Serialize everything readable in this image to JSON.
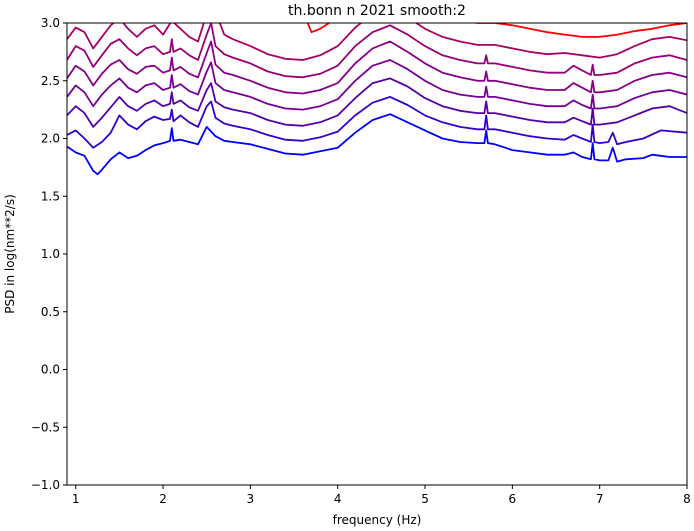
{
  "chart_data": {
    "type": "line",
    "title": "th.bonn n 2021 smooth:2",
    "xlabel": "frequency (Hz)",
    "ylabel": "PSD in log(nm**2/s)",
    "xlim": [
      0.9,
      8.0
    ],
    "ylim": [
      -1.0,
      3.0
    ],
    "grid": false,
    "legend": "none",
    "x_ticks": [
      1,
      2,
      3,
      4,
      5,
      6,
      7,
      8
    ],
    "y_ticks": [
      -1.0,
      -0.5,
      0.0,
      0.5,
      1.0,
      1.5,
      2.0,
      2.5,
      3.0
    ],
    "x_tick_labels": [
      "1",
      "2",
      "3",
      "4",
      "5",
      "6",
      "7",
      "8"
    ],
    "y_tick_labels": [
      "−1.0",
      "−0.5",
      "0.0",
      "0.5",
      "1.0",
      "1.5",
      "2.0",
      "2.5",
      "3.0"
    ],
    "series": [
      {
        "color": "#0000ff",
        "x": [
          0.9,
          1.0,
          1.1,
          1.2,
          1.25,
          1.3,
          1.4,
          1.5,
          1.6,
          1.7,
          1.8,
          1.9,
          2.0,
          2.08,
          2.1,
          2.12,
          2.2,
          2.3,
          2.4,
          2.5,
          2.6,
          2.7,
          2.8,
          3.0,
          3.2,
          3.4,
          3.6,
          3.8,
          4.0,
          4.2,
          4.4,
          4.6,
          4.8,
          5.0,
          5.2,
          5.4,
          5.6,
          5.68,
          5.7,
          5.72,
          5.8,
          6.0,
          6.2,
          6.4,
          6.6,
          6.7,
          6.8,
          6.9,
          6.92,
          6.94,
          7.0,
          7.1,
          7.15,
          7.2,
          7.3,
          7.5,
          7.6,
          7.7,
          7.8,
          8.0
        ],
        "y": [
          1.93,
          1.88,
          1.85,
          1.72,
          1.69,
          1.73,
          1.82,
          1.88,
          1.83,
          1.85,
          1.9,
          1.94,
          1.96,
          1.98,
          2.09,
          1.98,
          1.99,
          1.97,
          1.95,
          2.1,
          2.02,
          1.98,
          1.97,
          1.95,
          1.91,
          1.87,
          1.86,
          1.89,
          1.92,
          2.05,
          2.16,
          2.21,
          2.14,
          2.07,
          2.0,
          1.97,
          1.96,
          1.96,
          2.07,
          1.96,
          1.95,
          1.9,
          1.88,
          1.86,
          1.86,
          1.88,
          1.84,
          1.82,
          1.96,
          1.82,
          1.81,
          1.81,
          1.92,
          1.8,
          1.82,
          1.83,
          1.86,
          1.85,
          1.84,
          1.84
        ]
      },
      {
        "color": "#3300cc",
        "x": [
          0.9,
          1.0,
          1.1,
          1.2,
          1.3,
          1.4,
          1.5,
          1.6,
          1.7,
          1.8,
          1.9,
          2.0,
          2.08,
          2.1,
          2.12,
          2.2,
          2.3,
          2.4,
          2.5,
          2.55,
          2.6,
          2.7,
          2.8,
          3.0,
          3.2,
          3.4,
          3.6,
          3.8,
          4.0,
          4.2,
          4.4,
          4.6,
          4.8,
          5.0,
          5.2,
          5.4,
          5.6,
          5.68,
          5.7,
          5.72,
          5.8,
          6.0,
          6.2,
          6.4,
          6.6,
          6.7,
          6.8,
          6.9,
          6.92,
          6.94,
          7.0,
          7.1,
          7.15,
          7.2,
          7.3,
          7.5,
          7.7,
          8.0
        ],
        "y": [
          2.03,
          2.07,
          2.0,
          1.92,
          1.97,
          2.05,
          2.2,
          2.12,
          2.08,
          2.15,
          2.19,
          2.16,
          2.17,
          2.25,
          2.15,
          2.2,
          2.14,
          2.1,
          2.28,
          2.32,
          2.18,
          2.13,
          2.11,
          2.08,
          2.03,
          1.99,
          1.98,
          2.01,
          2.06,
          2.2,
          2.31,
          2.36,
          2.29,
          2.2,
          2.14,
          2.1,
          2.08,
          2.08,
          2.2,
          2.08,
          2.08,
          2.05,
          2.02,
          2.0,
          1.99,
          2.03,
          2.0,
          1.97,
          2.12,
          1.97,
          1.96,
          1.97,
          2.05,
          1.95,
          1.97,
          2.0,
          2.07,
          2.05
        ]
      },
      {
        "color": "#5500aa",
        "x": [
          0.9,
          1.0,
          1.1,
          1.2,
          1.3,
          1.4,
          1.5,
          1.6,
          1.7,
          1.8,
          1.9,
          2.0,
          2.08,
          2.1,
          2.12,
          2.2,
          2.3,
          2.4,
          2.5,
          2.55,
          2.6,
          2.7,
          2.8,
          3.0,
          3.2,
          3.4,
          3.6,
          3.8,
          4.0,
          4.2,
          4.4,
          4.6,
          4.8,
          5.0,
          5.2,
          5.4,
          5.6,
          5.68,
          5.7,
          5.72,
          5.8,
          6.0,
          6.2,
          6.4,
          6.6,
          6.7,
          6.8,
          6.9,
          6.92,
          6.94,
          7.0,
          7.2,
          7.4,
          7.6,
          7.8,
          8.0
        ],
        "y": [
          2.2,
          2.28,
          2.22,
          2.1,
          2.18,
          2.27,
          2.36,
          2.28,
          2.24,
          2.3,
          2.33,
          2.28,
          2.3,
          2.4,
          2.3,
          2.33,
          2.27,
          2.24,
          2.42,
          2.48,
          2.32,
          2.27,
          2.25,
          2.22,
          2.16,
          2.12,
          2.11,
          2.14,
          2.2,
          2.35,
          2.48,
          2.52,
          2.45,
          2.35,
          2.28,
          2.24,
          2.22,
          2.22,
          2.32,
          2.22,
          2.22,
          2.19,
          2.16,
          2.14,
          2.14,
          2.18,
          2.15,
          2.12,
          2.26,
          2.12,
          2.12,
          2.14,
          2.2,
          2.26,
          2.28,
          2.22
        ]
      },
      {
        "color": "#770099",
        "x": [
          0.9,
          1.0,
          1.1,
          1.2,
          1.3,
          1.4,
          1.5,
          1.6,
          1.7,
          1.8,
          1.9,
          2.0,
          2.08,
          2.1,
          2.12,
          2.2,
          2.3,
          2.4,
          2.5,
          2.55,
          2.6,
          2.7,
          2.8,
          3.0,
          3.2,
          3.4,
          3.6,
          3.8,
          4.0,
          4.2,
          4.4,
          4.6,
          4.8,
          5.0,
          5.2,
          5.4,
          5.6,
          5.68,
          5.7,
          5.72,
          5.8,
          6.0,
          6.2,
          6.4,
          6.6,
          6.7,
          6.8,
          6.9,
          6.92,
          6.94,
          7.0,
          7.2,
          7.4,
          7.6,
          7.8,
          8.0
        ],
        "y": [
          2.36,
          2.46,
          2.4,
          2.28,
          2.38,
          2.46,
          2.52,
          2.44,
          2.4,
          2.46,
          2.48,
          2.42,
          2.44,
          2.55,
          2.44,
          2.47,
          2.41,
          2.38,
          2.58,
          2.66,
          2.48,
          2.42,
          2.4,
          2.36,
          2.3,
          2.26,
          2.25,
          2.28,
          2.34,
          2.5,
          2.63,
          2.68,
          2.6,
          2.5,
          2.42,
          2.38,
          2.36,
          2.36,
          2.45,
          2.36,
          2.36,
          2.33,
          2.3,
          2.28,
          2.28,
          2.33,
          2.29,
          2.26,
          2.38,
          2.26,
          2.26,
          2.28,
          2.35,
          2.4,
          2.42,
          2.38
        ]
      },
      {
        "color": "#880088",
        "x": [
          0.9,
          1.0,
          1.1,
          1.2,
          1.3,
          1.4,
          1.5,
          1.6,
          1.7,
          1.8,
          1.9,
          2.0,
          2.08,
          2.1,
          2.12,
          2.2,
          2.3,
          2.4,
          2.5,
          2.55,
          2.6,
          2.7,
          2.8,
          3.0,
          3.2,
          3.4,
          3.6,
          3.8,
          4.0,
          4.2,
          4.4,
          4.6,
          4.8,
          5.0,
          5.2,
          5.4,
          5.6,
          5.68,
          5.7,
          5.72,
          5.8,
          6.0,
          6.2,
          6.4,
          6.6,
          6.7,
          6.8,
          6.9,
          6.92,
          6.94,
          7.0,
          7.2,
          7.4,
          7.6,
          7.8,
          8.0
        ],
        "y": [
          2.52,
          2.63,
          2.58,
          2.46,
          2.56,
          2.64,
          2.68,
          2.6,
          2.56,
          2.62,
          2.63,
          2.57,
          2.59,
          2.7,
          2.59,
          2.62,
          2.56,
          2.53,
          2.74,
          2.84,
          2.64,
          2.57,
          2.55,
          2.5,
          2.44,
          2.4,
          2.39,
          2.42,
          2.48,
          2.65,
          2.78,
          2.84,
          2.75,
          2.65,
          2.57,
          2.53,
          2.5,
          2.5,
          2.58,
          2.5,
          2.5,
          2.47,
          2.44,
          2.42,
          2.42,
          2.48,
          2.44,
          2.4,
          2.5,
          2.4,
          2.4,
          2.42,
          2.5,
          2.55,
          2.57,
          2.53
        ]
      },
      {
        "color": "#990077",
        "x": [
          0.9,
          1.0,
          1.1,
          1.2,
          1.3,
          1.4,
          1.5,
          1.6,
          1.7,
          1.8,
          1.9,
          2.0,
          2.08,
          2.1,
          2.12,
          2.2,
          2.3,
          2.4,
          2.5,
          2.55,
          2.6,
          2.7,
          2.8,
          3.0,
          3.2,
          3.4,
          3.6,
          3.8,
          4.0,
          4.2,
          4.4,
          4.6,
          4.8,
          5.0,
          5.2,
          5.4,
          5.6,
          5.68,
          5.7,
          5.72,
          5.8,
          6.0,
          6.2,
          6.4,
          6.6,
          6.7,
          6.8,
          6.9,
          6.92,
          6.94,
          7.0,
          7.2,
          7.4,
          7.6,
          7.8,
          8.0
        ],
        "y": [
          2.68,
          2.8,
          2.76,
          2.62,
          2.72,
          2.82,
          2.86,
          2.78,
          2.72,
          2.78,
          2.8,
          2.73,
          2.75,
          2.86,
          2.75,
          2.78,
          2.72,
          2.68,
          2.9,
          3.0,
          2.8,
          2.73,
          2.7,
          2.65,
          2.58,
          2.54,
          2.53,
          2.56,
          2.63,
          2.8,
          2.92,
          2.98,
          2.9,
          2.8,
          2.72,
          2.68,
          2.65,
          2.65,
          2.72,
          2.65,
          2.65,
          2.62,
          2.59,
          2.57,
          2.57,
          2.63,
          2.59,
          2.55,
          2.64,
          2.55,
          2.55,
          2.57,
          2.65,
          2.7,
          2.72,
          2.68
        ]
      },
      {
        "color": "#aa0066",
        "x": [
          0.9,
          1.0,
          1.1,
          1.2,
          1.3,
          1.4,
          1.5,
          1.6,
          1.7,
          1.8,
          1.9,
          2.0,
          2.1,
          2.2,
          2.3,
          2.4,
          2.5,
          2.6,
          2.7,
          2.8,
          3.0,
          3.2,
          3.4,
          3.6,
          3.8,
          4.0,
          4.2,
          4.4,
          4.6,
          4.8,
          5.0,
          5.2,
          5.4,
          5.6,
          5.8,
          6.0,
          6.2,
          6.4,
          6.6,
          6.8,
          7.0,
          7.2,
          7.4,
          7.6,
          7.8,
          8.0
        ],
        "y": [
          2.86,
          2.96,
          2.92,
          2.78,
          2.88,
          2.98,
          3.04,
          2.95,
          2.88,
          2.95,
          2.98,
          2.9,
          3.02,
          2.95,
          2.88,
          2.84,
          3.08,
          3.1,
          2.9,
          2.86,
          2.8,
          2.73,
          2.69,
          2.68,
          2.72,
          2.8,
          2.96,
          3.08,
          3.12,
          3.05,
          2.95,
          2.88,
          2.84,
          2.81,
          2.81,
          2.78,
          2.75,
          2.73,
          2.74,
          2.72,
          2.7,
          2.73,
          2.8,
          2.86,
          2.88,
          2.85
        ]
      },
      {
        "color": "#ff0000",
        "x": [
          3.6,
          3.7,
          3.8,
          3.9,
          4.0,
          4.1,
          4.2,
          4.3,
          4.4,
          4.5,
          4.6,
          4.7,
          4.8,
          4.9,
          5.0,
          5.2,
          5.4,
          5.6,
          5.8,
          6.0,
          6.2,
          6.4,
          6.6,
          6.8,
          7.0,
          7.2,
          7.4,
          7.6,
          7.8,
          8.0
        ],
        "y": [
          3.1,
          2.92,
          2.95,
          3.0,
          3.05,
          3.1,
          3.12,
          3.1,
          3.1,
          3.12,
          3.12,
          3.1,
          3.08,
          3.1,
          3.08,
          3.05,
          3.02,
          3.0,
          3.0,
          2.98,
          2.95,
          2.92,
          2.9,
          2.88,
          2.88,
          2.9,
          2.93,
          2.95,
          2.98,
          3.0
        ]
      }
    ]
  }
}
